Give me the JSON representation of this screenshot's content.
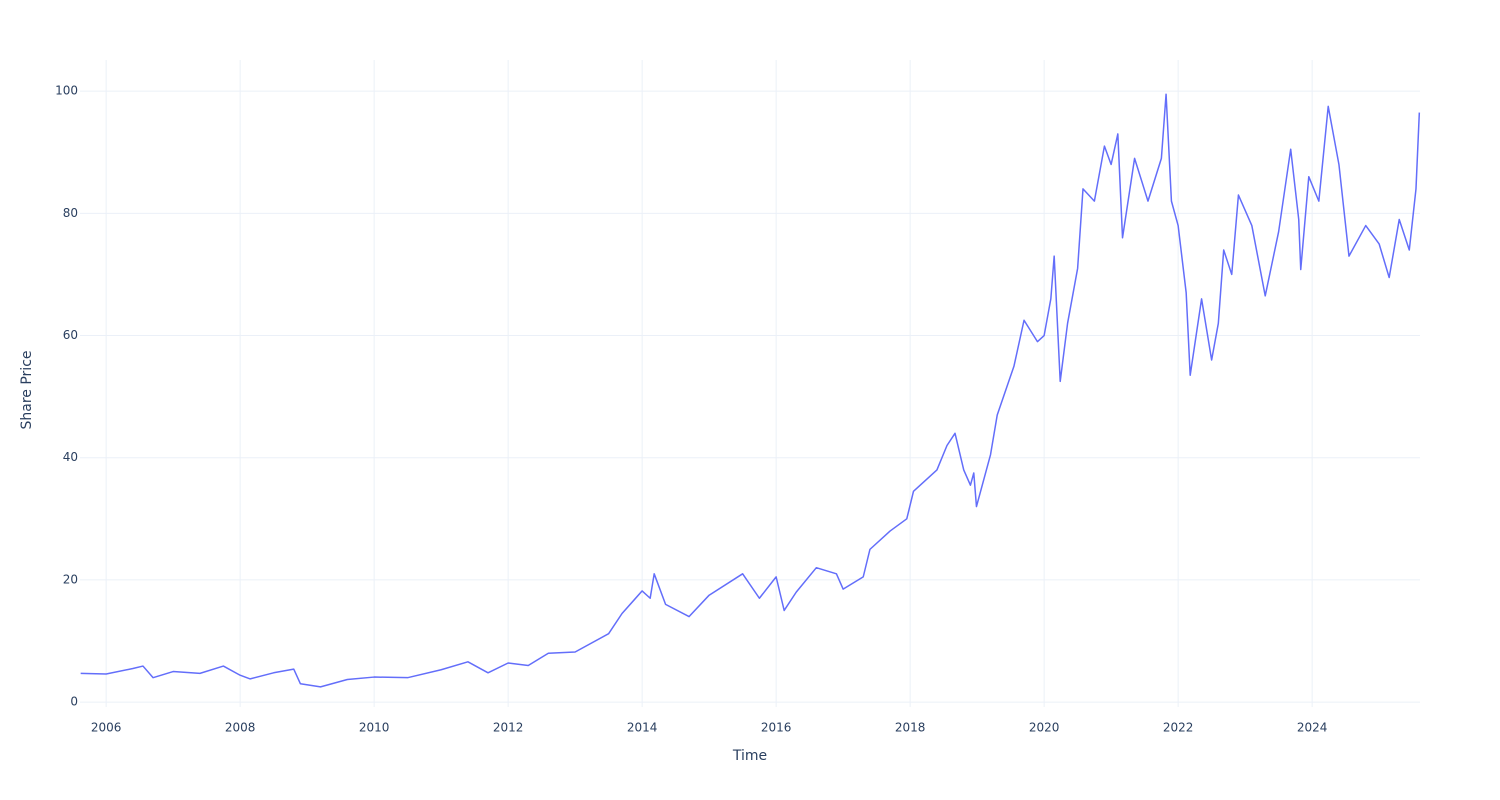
{
  "chart_data": {
    "type": "line",
    "x_label": "Time",
    "y_label": "Share Price",
    "x": [
      2005.62,
      2006.0,
      2006.4,
      2006.55,
      2006.7,
      2007.0,
      2007.4,
      2007.75,
      2008.0,
      2008.15,
      2008.5,
      2008.8,
      2008.9,
      2009.2,
      2009.6,
      2010.0,
      2010.5,
      2011.0,
      2011.4,
      2011.7,
      2012.0,
      2012.3,
      2012.6,
      2013.0,
      2013.5,
      2013.7,
      2014.0,
      2014.12,
      2014.18,
      2014.35,
      2014.7,
      2015.0,
      2015.5,
      2015.75,
      2016.0,
      2016.12,
      2016.3,
      2016.6,
      2016.9,
      2017.0,
      2017.3,
      2017.4,
      2017.7,
      2017.95,
      2018.05,
      2018.4,
      2018.55,
      2018.67,
      2018.8,
      2018.9,
      2018.95,
      2018.99,
      2019.2,
      2019.3,
      2019.55,
      2019.7,
      2019.9,
      2020.0,
      2020.1,
      2020.15,
      2020.24,
      2020.35,
      2020.5,
      2020.58,
      2020.75,
      2020.9,
      2021.0,
      2021.1,
      2021.17,
      2021.35,
      2021.55,
      2021.75,
      2021.82,
      2021.9,
      2022.0,
      2022.12,
      2022.18,
      2022.35,
      2022.5,
      2022.6,
      2022.68,
      2022.8,
      2022.9,
      2023.1,
      2023.3,
      2023.5,
      2023.68,
      2023.8,
      2023.83,
      2023.95,
      2024.1,
      2024.24,
      2024.4,
      2024.55,
      2024.8,
      2025.0,
      2025.15,
      2025.3,
      2025.45,
      2025.55,
      2025.6
    ],
    "series": [
      {
        "name": "Share Price",
        "color": "#636efa",
        "values": [
          4.7,
          4.6,
          5.5,
          5.9,
          4.0,
          5.0,
          4.7,
          5.9,
          4.4,
          3.8,
          4.8,
          5.4,
          3.0,
          2.5,
          3.7,
          4.1,
          4.0,
          5.3,
          6.6,
          4.8,
          6.4,
          6.0,
          8.0,
          8.2,
          11.2,
          14.5,
          18.2,
          17.0,
          21.0,
          16.0,
          14.0,
          17.5,
          21.0,
          17.0,
          20.5,
          15.0,
          18.0,
          22.0,
          21.0,
          18.5,
          20.5,
          25.0,
          28.0,
          30.0,
          34.5,
          38.0,
          42.0,
          44.0,
          38.0,
          35.5,
          37.5,
          32.0,
          40.5,
          47.0,
          55.0,
          62.5,
          59.0,
          60.0,
          66.0,
          73.0,
          52.5,
          62.0,
          71.0,
          84.0,
          82.0,
          91.0,
          88.0,
          93.0,
          76.0,
          89.0,
          82.0,
          89.0,
          99.5,
          82.0,
          78.0,
          67.0,
          53.5,
          66.0,
          56.0,
          62.0,
          74.0,
          70.0,
          83.0,
          78.0,
          66.5,
          77.0,
          90.5,
          79.0,
          70.8,
          86.0,
          82.0,
          97.5,
          88.0,
          73.0,
          78.0,
          75.0,
          69.5,
          79.0,
          74.0,
          84.0,
          96.5
        ]
      }
    ],
    "xlim": [
      2005.61,
      2025.61
    ],
    "xticks": [
      2006,
      2008,
      2010,
      2012,
      2014,
      2016,
      2018,
      2020,
      2022,
      2024
    ],
    "ylim": [
      -0.8,
      105.1
    ],
    "yticks": [
      0,
      20,
      40,
      60,
      80,
      100
    ],
    "grid": true
  }
}
